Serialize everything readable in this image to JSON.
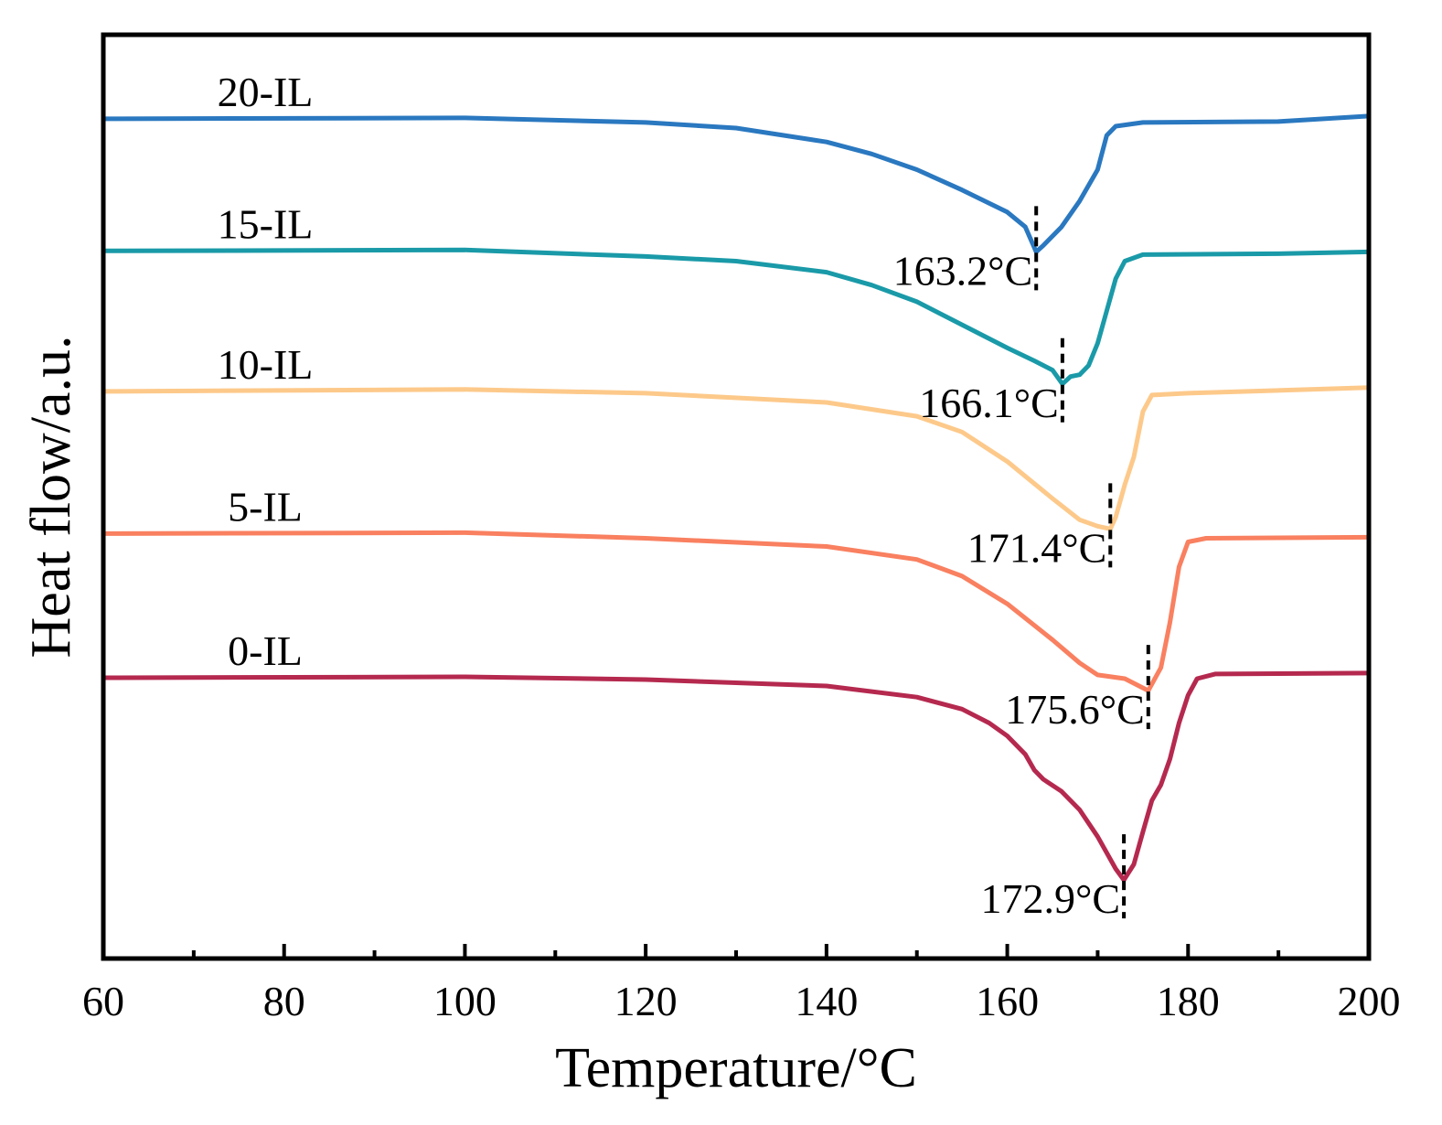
{
  "chart_data": {
    "type": "line",
    "xlabel": "Temperature/°C",
    "ylabel": "Heat flow/a.u.",
    "xlim": [
      60,
      200
    ],
    "xticks": [
      60,
      80,
      100,
      120,
      140,
      160,
      180,
      200
    ],
    "xminorticks": [
      70,
      90,
      110,
      130,
      150,
      170,
      190
    ],
    "ylim": [
      0,
      100
    ],
    "series": [
      {
        "name": "20-IL",
        "color": "#2a78c0",
        "x": [
          60,
          100,
          120,
          130,
          140,
          145,
          150,
          155,
          160,
          162,
          163.2,
          164,
          166,
          168,
          170,
          171,
          172,
          175,
          190,
          200
        ],
        "values": [
          90.9,
          91.0,
          90.5,
          89.9,
          88.4,
          87.1,
          85.4,
          83.2,
          80.8,
          79.2,
          76.5,
          77.2,
          79.2,
          82.0,
          85.4,
          89.1,
          90.1,
          90.5,
          90.6,
          91.2
        ]
      },
      {
        "name": "15-IL",
        "color": "#1a9aa8",
        "x": [
          60,
          100,
          120,
          130,
          140,
          145,
          150,
          155,
          160,
          163,
          165,
          166.1,
          167,
          168,
          169,
          170,
          171,
          172,
          173,
          175,
          190,
          200
        ],
        "values": [
          76.6,
          76.7,
          76.0,
          75.5,
          74.3,
          72.9,
          71.1,
          68.6,
          66.1,
          64.7,
          63.7,
          62.2,
          63.0,
          63.2,
          64.2,
          66.6,
          70.1,
          73.6,
          75.5,
          76.2,
          76.3,
          76.5
        ]
      },
      {
        "name": "10-IL",
        "color": "#fdc98a",
        "x": [
          60,
          100,
          120,
          140,
          150,
          155,
          160,
          165,
          168,
          170,
          171.4,
          172,
          173,
          174,
          175,
          176,
          180,
          200
        ],
        "values": [
          61.4,
          61.6,
          61.2,
          60.2,
          58.7,
          57.0,
          53.8,
          49.8,
          47.5,
          46.8,
          46.5,
          47.8,
          51.3,
          54.3,
          59.2,
          61.0,
          61.2,
          61.8
        ]
      },
      {
        "name": "5-IL",
        "color": "#f98060",
        "x": [
          60,
          100,
          120,
          140,
          150,
          155,
          160,
          165,
          168,
          170,
          173,
          175.6,
          177,
          178,
          179,
          180,
          182,
          200
        ],
        "values": [
          46.0,
          46.1,
          45.5,
          44.6,
          43.2,
          41.4,
          38.4,
          34.5,
          32.0,
          30.7,
          30.3,
          29.0,
          31.5,
          36.4,
          42.4,
          45.1,
          45.5,
          45.6
        ]
      },
      {
        "name": "0-IL",
        "color": "#b5294f",
        "x": [
          60,
          100,
          120,
          140,
          150,
          155,
          158,
          160,
          162,
          163,
          164,
          166,
          168,
          170,
          172,
          172.9,
          174,
          175,
          176,
          177,
          178,
          179,
          180,
          181,
          183,
          200
        ],
        "values": [
          30.4,
          30.5,
          30.2,
          29.5,
          28.3,
          27.0,
          25.5,
          24.1,
          22.1,
          20.4,
          19.4,
          18.1,
          16.1,
          13.2,
          9.7,
          8.5,
          10.2,
          13.7,
          17.1,
          18.8,
          21.6,
          25.5,
          28.5,
          30.3,
          30.8,
          30.9
        ]
      }
    ],
    "annotations": [
      {
        "text": "163.2°C",
        "x": 163.2,
        "y": 76.5
      },
      {
        "text": "166.1°C",
        "x": 166.1,
        "y": 62.2
      },
      {
        "text": "171.4°C",
        "x": 171.4,
        "y": 46.5
      },
      {
        "text": "175.6°C",
        "x": 175.6,
        "y": 29.0
      },
      {
        "text": "172.9°C",
        "x": 172.9,
        "y": 8.5
      }
    ]
  }
}
